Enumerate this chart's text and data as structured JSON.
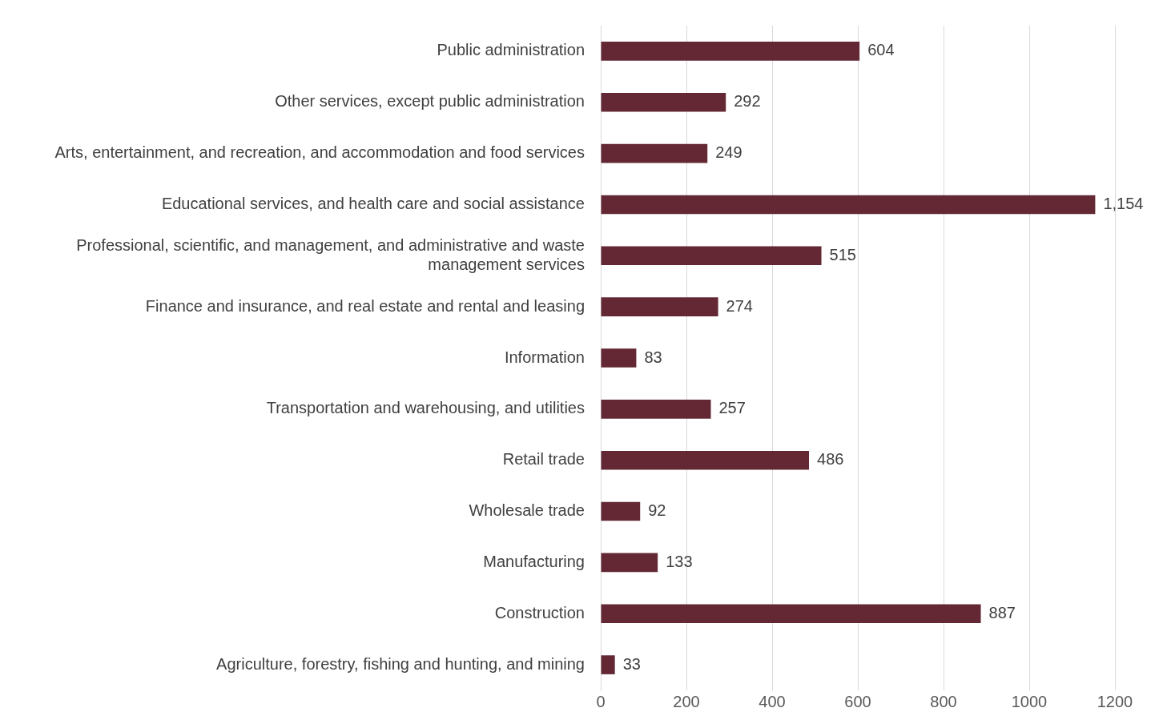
{
  "chart_data": {
    "type": "bar",
    "orientation": "horizontal",
    "categories": [
      "Public administration",
      "Other services, except public administration",
      "Arts, entertainment, and recreation, and accommodation and food services",
      "Educational services, and health care and social assistance",
      "Professional, scientific, and management, and administrative and waste management services",
      "Finance and insurance, and real estate and rental and leasing",
      "Information",
      "Transportation and warehousing, and utilities",
      "Retail trade",
      "Wholesale trade",
      "Manufacturing",
      "Construction",
      "Agriculture, forestry, fishing and hunting, and mining"
    ],
    "values": [
      604,
      292,
      249,
      1154,
      515,
      274,
      83,
      257,
      486,
      92,
      133,
      887,
      33
    ],
    "color": "#632834",
    "xlim": [
      0,
      1200
    ],
    "xticks": [
      0,
      200,
      400,
      600,
      800,
      1000,
      1200
    ],
    "value_labels": [
      "604",
      "292",
      "249",
      "1,154",
      "515",
      "274",
      "83",
      "257",
      "486",
      "92",
      "133",
      "887",
      "33"
    ],
    "grid": "x",
    "legend": false
  }
}
